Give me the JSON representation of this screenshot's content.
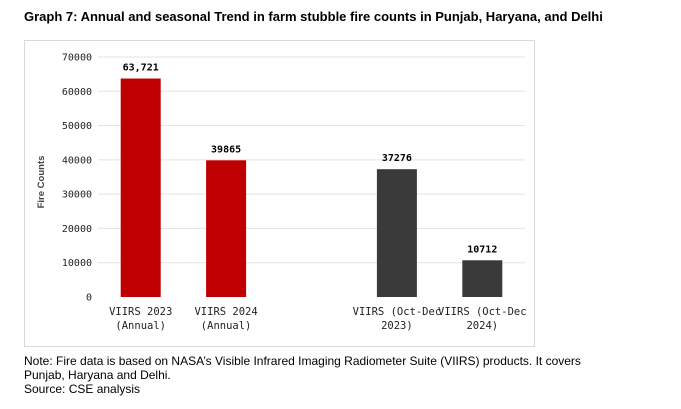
{
  "title": "Graph 7: Annual and seasonal Trend in farm stubble fire counts in Punjab, Haryana, and Delhi",
  "note_lines": [
    "Note: Fire data is based on NASA’s Visible Infrared Imaging Radiometer Suite (VIIRS) products. It covers",
    "Punjab, Haryana and Delhi.",
    "Source: CSE analysis"
  ],
  "chart_data": {
    "type": "bar",
    "ylabel": "Fire Counts",
    "xlabel": "",
    "ylim": [
      0,
      70000
    ],
    "yticks": [
      "0",
      "10000",
      "20000",
      "30000",
      "40000",
      "50000",
      "60000",
      "70000"
    ],
    "grid": true,
    "categories": [
      [
        "VIIRS 2023",
        "(Annual)"
      ],
      [
        "VIIRS 2024",
        "(Annual)"
      ],
      [
        "",
        ""
      ],
      [
        "VIIRS (Oct-Dec",
        "2023)"
      ],
      [
        "VIIRS (Oct-Dec",
        "2024)"
      ]
    ],
    "values": [
      63721,
      39865,
      null,
      37276,
      10712
    ],
    "data_labels": [
      "63,721",
      "39865",
      "",
      "37276",
      "10712"
    ],
    "colors": [
      "#c00000",
      "#c00000",
      "",
      "#3a3a3a",
      "#3a3a3a"
    ]
  }
}
